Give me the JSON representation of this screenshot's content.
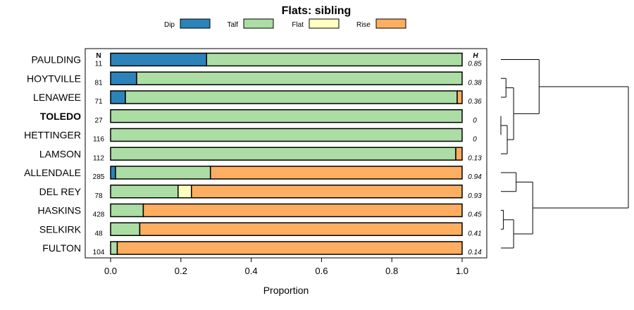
{
  "chart_data": {
    "type": "bar",
    "orientation": "horizontal",
    "stacked": true,
    "title": "Flats: sibling",
    "xlabel": "Proportion",
    "ylabel": "",
    "xlim": [
      0,
      1
    ],
    "xticks": [
      "0.0",
      "0.2",
      "0.4",
      "0.6",
      "0.8",
      "1.0"
    ],
    "legend_position": "top",
    "n_header": "N",
    "h_header": "H",
    "categories": [
      "PAULDING",
      "HOYTVILLE",
      "LENAWEE",
      "TOLEDO",
      "HETTINGER",
      "LAMSON",
      "ALLENDALE",
      "DEL REY",
      "HASKINS",
      "SELKIRK",
      "FULTON"
    ],
    "highlight": "TOLEDO",
    "n": [
      "11",
      "81",
      "71",
      "27",
      "116",
      "112",
      "285",
      "78",
      "428",
      "48",
      "104"
    ],
    "h": [
      "0.85",
      "0.38",
      "0.36",
      "0",
      "0",
      "0.13",
      "0.94",
      "0.93",
      "0.45",
      "0.41",
      "0.14"
    ],
    "series": [
      {
        "name": "Dip",
        "color": "#2b83ba",
        "values": [
          0.273,
          0.074,
          0.042,
          0,
          0,
          0,
          0.014,
          0,
          0,
          0,
          0
        ]
      },
      {
        "name": "Talf",
        "color": "#abdda4",
        "values": [
          0.727,
          0.926,
          0.944,
          1.0,
          1.0,
          0.982,
          0.27,
          0.192,
          0.093,
          0.083,
          0.019
        ]
      },
      {
        "name": "Flat",
        "color": "#ffffbf",
        "values": [
          0,
          0,
          0,
          0,
          0,
          0,
          0,
          0.038,
          0,
          0,
          0
        ]
      },
      {
        "name": "Rise",
        "color": "#fdae61",
        "values": [
          0,
          0,
          0.014,
          0,
          0,
          0.018,
          0.716,
          0.77,
          0.907,
          0.917,
          0.981
        ]
      }
    ],
    "dendrogram": {
      "merges": [
        {
          "left": "TOLEDO",
          "right": "HETTINGER",
          "height": 0.0
        },
        {
          "left": "HASKINS",
          "right": "SELKIRK",
          "height": 0.02
        },
        {
          "left": "HOYTVILLE",
          "right": "LENAWEE",
          "height": 0.04
        },
        {
          "left": "merge-TOLEDO-HETTINGER",
          "right": "LAMSON",
          "height": 0.05
        },
        {
          "left": "merge-HASKINS-SELKIRK",
          "right": "FULTON",
          "height": 0.1
        },
        {
          "left": "ALLENDALE",
          "right": "DEL REY",
          "height": 0.12
        },
        {
          "left": "merge-HOYTVILLE-LENAWEE",
          "right": "merge-TOLEDO-HETTINGER-LAMSON",
          "height": 0.1
        },
        {
          "left": "merge-ALLENDALE-DELREY",
          "right": "merge-HASKINS-SELKIRK-FULTON",
          "height": 0.25
        },
        {
          "left": "PAULDING",
          "right": "merge-HOYTVILLE-LENAWEE-TOLEDO-HETTINGER-LAMSON",
          "height": 0.3
        },
        {
          "left": "merge-upper",
          "right": "merge-lower",
          "height": 1.0
        }
      ]
    }
  }
}
